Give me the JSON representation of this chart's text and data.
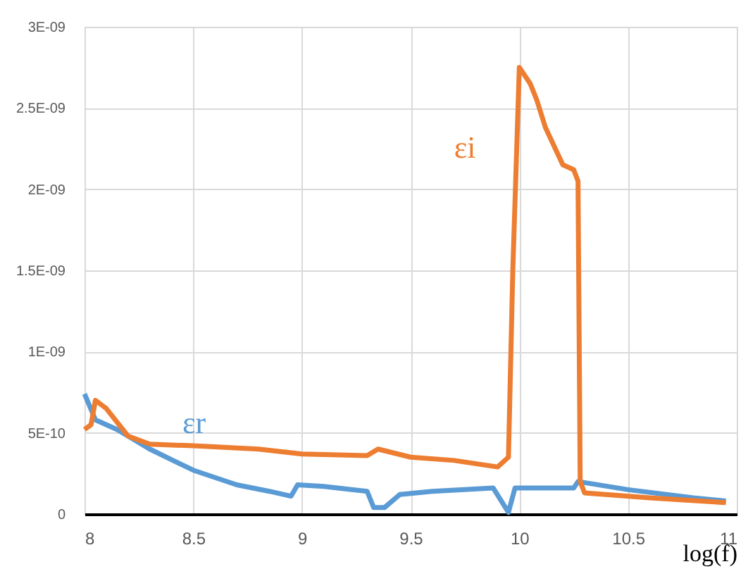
{
  "chart_data": {
    "type": "line",
    "xlabel": "log(f)",
    "xlim": [
      8,
      11
    ],
    "xticks": [
      8,
      8.5,
      9,
      9.5,
      10,
      10.5,
      11
    ],
    "ylim": [
      0,
      3e-09
    ],
    "yticks": [
      0,
      {
        "value": 5e-10,
        "label": "5E-10"
      },
      {
        "value": 1e-09,
        "label": "1E-09"
      },
      {
        "value": 1.5e-09,
        "label": "1.5E-09"
      },
      {
        "value": 2e-09,
        "label": "2E-09"
      },
      {
        "value": 2.5e-09,
        "label": "2.5E-09"
      },
      {
        "value": 3e-09,
        "label": "3E-09"
      }
    ],
    "grid": true,
    "legend": false,
    "marker": "none",
    "line_style": "solid",
    "series": [
      {
        "name": "εr",
        "color": "#5b9bd5",
        "x": [
          8.0,
          8.05,
          8.15,
          8.3,
          8.5,
          8.7,
          8.85,
          8.95,
          8.98,
          9.1,
          9.3,
          9.33,
          9.38,
          9.45,
          9.6,
          9.88,
          9.95,
          9.98,
          10.25,
          10.27,
          10.5,
          10.8,
          10.95
        ],
        "values": [
          7.4e-10,
          5.8e-10,
          5.2e-10,
          4e-10,
          2.7e-10,
          1.8e-10,
          1.4e-10,
          1.1e-10,
          1.8e-10,
          1.7e-10,
          1.4e-10,
          4e-11,
          4e-11,
          1.2e-10,
          1.4e-10,
          1.6e-10,
          1e-11,
          1.6e-10,
          1.6e-10,
          2e-10,
          1.5e-10,
          1e-10,
          8e-11
        ]
      },
      {
        "name": "εi",
        "color": "#ed7d31",
        "x": [
          8.0,
          8.03,
          8.05,
          8.1,
          8.2,
          8.3,
          8.5,
          8.8,
          9.0,
          9.3,
          9.35,
          9.5,
          9.7,
          9.9,
          9.95,
          9.97,
          10.0,
          10.05,
          10.08,
          10.12,
          10.2,
          10.25,
          10.27,
          10.28,
          10.3,
          10.6,
          10.95
        ],
        "values": [
          5.2e-10,
          5.5e-10,
          7e-10,
          6.5e-10,
          4.8e-10,
          4.3e-10,
          4.2e-10,
          4e-10,
          3.7e-10,
          3.6e-10,
          4e-10,
          3.5e-10,
          3.3e-10,
          2.9e-10,
          3.5e-10,
          1.5e-09,
          2.75e-09,
          2.65e-09,
          2.55e-09,
          2.38e-09,
          2.15e-09,
          2.12e-09,
          2.05e-09,
          2e-10,
          1.3e-10,
          1e-10,
          7e-11
        ]
      }
    ]
  }
}
